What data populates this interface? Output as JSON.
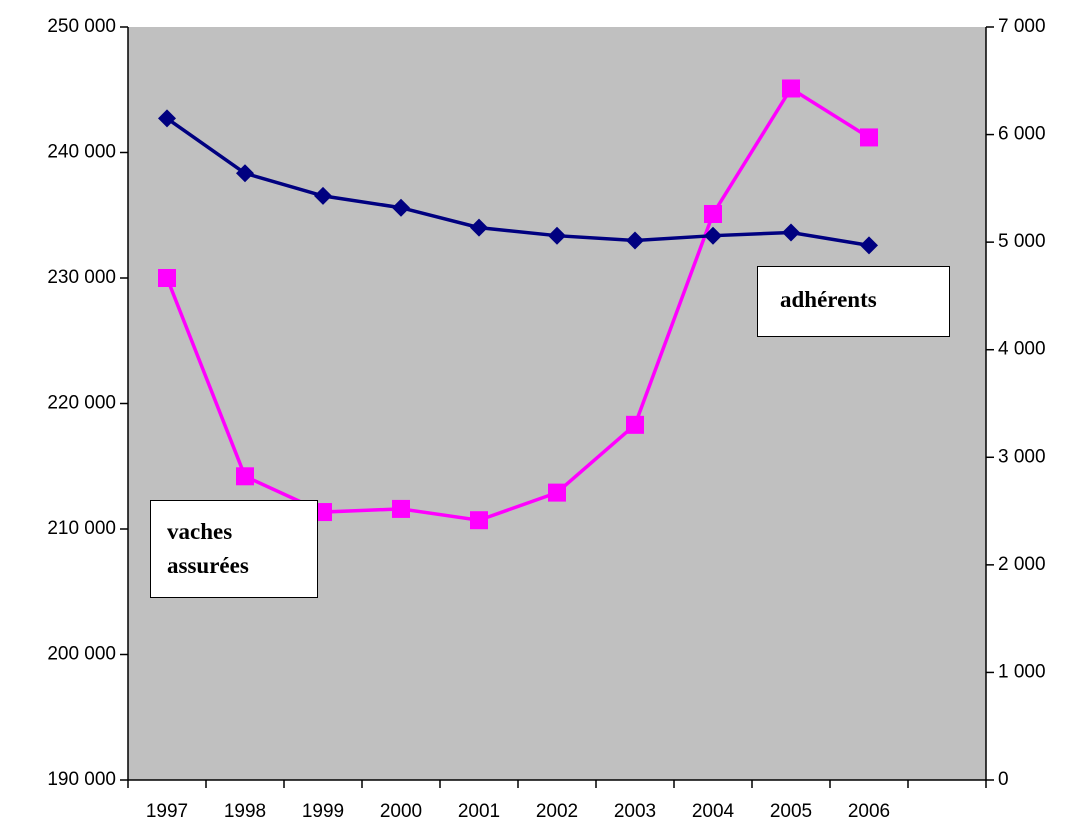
{
  "chart_data": {
    "type": "line",
    "categories": [
      "1997",
      "1998",
      "1999",
      "2000",
      "2001",
      "2002",
      "2003",
      "2004",
      "2005",
      "2006",
      null
    ],
    "series": [
      {
        "name": "vaches assurées",
        "color": "#ff00ff",
        "marker": "square",
        "axis": "y",
        "values": [
          230000,
          214200,
          211350,
          211600,
          210700,
          212900,
          218300,
          235100,
          245100,
          241200,
          null
        ]
      },
      {
        "name": "adhérents",
        "color": "#000080",
        "marker": "diamond",
        "axis": "y2",
        "values": [
          6150,
          5640,
          5430,
          5320,
          5135,
          5060,
          5015,
          5060,
          5090,
          4970,
          null
        ]
      }
    ],
    "ylim": [
      190000,
      250000
    ],
    "yticks": [
      {
        "value": 190000,
        "label": "190 000"
      },
      {
        "value": 200000,
        "label": "200 000"
      },
      {
        "value": 210000,
        "label": "210 000"
      },
      {
        "value": 220000,
        "label": "220 000"
      },
      {
        "value": 230000,
        "label": "230 000"
      },
      {
        "value": 240000,
        "label": "240 000"
      },
      {
        "value": 250000,
        "label": "250 000"
      }
    ],
    "y2lim": [
      0,
      7000
    ],
    "y2ticks": [
      0,
      {
        "value": 1000,
        "label": "1 000"
      },
      {
        "value": 2000,
        "label": "2 000"
      },
      {
        "value": 3000,
        "label": "3 000"
      },
      {
        "value": 4000,
        "label": "4 000"
      },
      {
        "value": 5000,
        "label": "5 000"
      },
      {
        "value": 6000,
        "label": "6 000"
      },
      {
        "value": 7000,
        "label": "7 000"
      }
    ],
    "plot_background": "#c0c0c0",
    "grid": false
  }
}
